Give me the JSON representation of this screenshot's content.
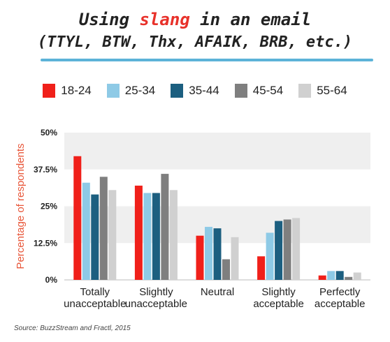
{
  "title": {
    "prefix": "Using ",
    "highlight": "slang",
    "suffix": " in an email",
    "line2": "(TTYL, BTW, Thx, AFAIK, BRB, etc.)"
  },
  "source": "Source: BuzzStream and Fractl, 2015",
  "colors": {
    "accent_red": "#e8312a",
    "underline_blue": "#5cb3d8",
    "ylabel_color": "#e8573a"
  },
  "chart_data": {
    "type": "bar",
    "title": "Using slang in an email (TTYL, BTW, Thx, AFAIK, BRB, etc.)",
    "xlabel": "",
    "ylabel": "Percentage of respondents",
    "ylim": [
      0,
      50
    ],
    "yticks": [
      "0%",
      "12.5%",
      "25%",
      "37.5%",
      "50%"
    ],
    "ytick_values": [
      0,
      12.5,
      25,
      37.5,
      50
    ],
    "categories": [
      [
        "Totally",
        "unacceptable"
      ],
      [
        "Slightly",
        "unacceptable"
      ],
      [
        "Neutral"
      ],
      [
        "Slightly",
        "acceptable"
      ],
      [
        "Perfectly",
        "acceptable"
      ]
    ],
    "legend_position": "top",
    "grid": "alternating horizontal bands",
    "series": [
      {
        "name": "18-24",
        "color": "#f0201a",
        "values": [
          42,
          32,
          15,
          8,
          1.5
        ]
      },
      {
        "name": "25-34",
        "color": "#8ecae6",
        "values": [
          33,
          29.5,
          18,
          16,
          3
        ]
      },
      {
        "name": "35-44",
        "color": "#1c5f80",
        "values": [
          29,
          29.5,
          17.5,
          20,
          3
        ]
      },
      {
        "name": "45-54",
        "color": "#7f7f7f",
        "values": [
          35,
          36,
          7,
          20.5,
          1
        ]
      },
      {
        "name": "55-64",
        "color": "#d0d0d0",
        "values": [
          30.5,
          30.5,
          14.5,
          21,
          2.5
        ]
      }
    ]
  }
}
